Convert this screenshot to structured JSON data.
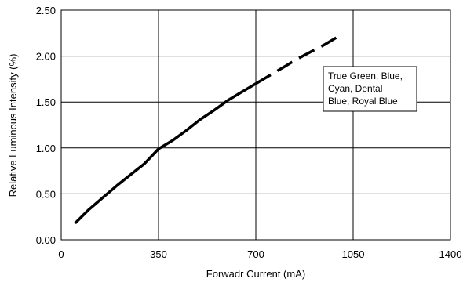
{
  "chart_data": {
    "type": "line",
    "title": "",
    "xlabel": "Forwadr Current (mA)",
    "ylabel": "Relative Luminous Intensity (%)",
    "xlim": [
      0,
      1400
    ],
    "ylim": [
      0,
      2.5
    ],
    "x_ticks": [
      "0",
      "350",
      "700",
      "1050",
      "1400"
    ],
    "y_ticks": [
      "0.00",
      "0.50",
      "1.00",
      "1.50",
      "2.00",
      "2.50"
    ],
    "grid": true,
    "legend_position": "right",
    "annotation": {
      "lines": [
        "True Green, Blue,",
        "Cyan, Dental",
        "Blue, Royal Blue"
      ]
    },
    "series": [
      {
        "line_style": "solid",
        "color": "#000000",
        "x": [
          50,
          100,
          150,
          200,
          250,
          300,
          350,
          400,
          450,
          500,
          550,
          600,
          650,
          700
        ],
        "y": [
          0.18,
          0.33,
          0.46,
          0.59,
          0.71,
          0.83,
          0.99,
          1.08,
          1.19,
          1.31,
          1.41,
          1.52,
          1.61,
          1.7
        ]
      },
      {
        "line_style": "dashed",
        "color": "#000000",
        "x": [
          700,
          750,
          800,
          850,
          900,
          950,
          1000
        ],
        "y": [
          1.7,
          1.79,
          1.88,
          1.97,
          2.05,
          2.13,
          2.22
        ]
      }
    ]
  }
}
